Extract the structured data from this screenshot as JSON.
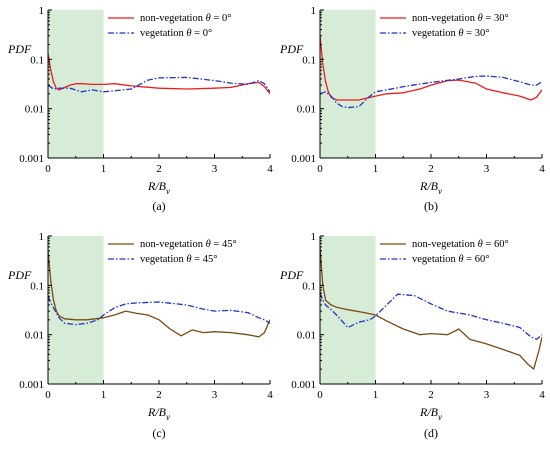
{
  "colors": {
    "shade": "#d6ecd6",
    "red": "#ee1c1c",
    "blue": "#2233cc",
    "brown": "#7a4a10",
    "axis": "#000000"
  },
  "panels_layout_note": "four panels in a 2x2 grid",
  "chart_data": [
    {
      "type": "line",
      "caption": "(a)",
      "xlabel": "R/B",
      "xlabel_sub": "v",
      "ylabel": "PDF",
      "xlim": [
        0,
        4
      ],
      "ylim": [
        0.001,
        1
      ],
      "yscale": "log",
      "xticks": [
        "0",
        "1",
        "2",
        "3",
        "4"
      ],
      "yticks": [
        "0.001",
        "0.01",
        "0.1",
        "1"
      ],
      "shaded_x": [
        0,
        1
      ],
      "legend_position": "top-center",
      "series": [
        {
          "name": "non-vegetation θ = 0°",
          "legend_pre": "non-vegetation ",
          "legend_theta": "θ",
          "legend_post": " = 0°",
          "color": "#ee1c1c",
          "dash": "solid",
          "x": [
            0,
            0.05,
            0.1,
            0.15,
            0.2,
            0.3,
            0.4,
            0.5,
            0.6,
            0.8,
            1.0,
            1.2,
            1.5,
            2.0,
            2.5,
            3.0,
            3.3,
            3.6,
            3.8,
            3.9,
            4.0
          ],
          "y": [
            0.13,
            0.06,
            0.035,
            0.026,
            0.024,
            0.027,
            0.03,
            0.032,
            0.032,
            0.031,
            0.031,
            0.032,
            0.029,
            0.026,
            0.025,
            0.026,
            0.027,
            0.032,
            0.034,
            0.028,
            0.02
          ]
        },
        {
          "name": "vegetation θ = 0°",
          "legend_pre": "vegetation ",
          "legend_theta": "θ",
          "legend_post": " = 0°",
          "color": "#2233cc",
          "dash": "dashdot",
          "x": [
            0,
            0.1,
            0.2,
            0.4,
            0.6,
            0.8,
            1.0,
            1.2,
            1.5,
            1.8,
            2.0,
            2.5,
            3.0,
            3.3,
            3.6,
            3.8,
            3.9,
            4.0
          ],
          "y": [
            0.03,
            0.025,
            0.026,
            0.026,
            0.022,
            0.024,
            0.022,
            0.023,
            0.025,
            0.038,
            0.042,
            0.043,
            0.037,
            0.033,
            0.031,
            0.037,
            0.032,
            0.022
          ]
        }
      ]
    },
    {
      "type": "line",
      "caption": "(b)",
      "xlabel": "R/B",
      "xlabel_sub": "v",
      "ylabel": "PDF",
      "xlim": [
        0,
        4
      ],
      "ylim": [
        0.001,
        1
      ],
      "yscale": "log",
      "xticks": [
        "0",
        "1",
        "2",
        "3",
        "4"
      ],
      "yticks": [
        "0.001",
        "0.01",
        "0.1",
        "1"
      ],
      "shaded_x": [
        0,
        1
      ],
      "legend_position": "top-center",
      "series": [
        {
          "name": "non-vegetation θ = 30°",
          "legend_pre": "non-vegetation ",
          "legend_theta": "θ",
          "legend_post": " = 30°",
          "color": "#ee1c1c",
          "dash": "solid",
          "x": [
            0,
            0.05,
            0.1,
            0.15,
            0.2,
            0.3,
            0.5,
            0.7,
            0.8,
            1.0,
            1.2,
            1.5,
            1.8,
            2.0,
            2.3,
            2.5,
            2.8,
            3.0,
            3.3,
            3.6,
            3.8,
            3.9,
            4.0
          ],
          "y": [
            0.3,
            0.08,
            0.035,
            0.022,
            0.017,
            0.015,
            0.015,
            0.015,
            0.016,
            0.018,
            0.02,
            0.021,
            0.025,
            0.03,
            0.037,
            0.038,
            0.033,
            0.025,
            0.021,
            0.018,
            0.015,
            0.017,
            0.024
          ]
        },
        {
          "name": "vegetation θ = 30°",
          "legend_pre": "vegetation ",
          "legend_theta": "θ",
          "legend_post": " = 30°",
          "color": "#2233cc",
          "dash": "dashdot",
          "x": [
            0,
            0.1,
            0.2,
            0.3,
            0.4,
            0.5,
            0.7,
            0.9,
            1.0,
            1.2,
            1.5,
            2.0,
            2.5,
            2.8,
            3.0,
            3.3,
            3.6,
            3.8,
            3.9,
            4.0
          ],
          "y": [
            0.02,
            0.022,
            0.018,
            0.013,
            0.011,
            0.0105,
            0.011,
            0.018,
            0.022,
            0.024,
            0.028,
            0.034,
            0.04,
            0.045,
            0.046,
            0.043,
            0.035,
            0.03,
            0.03,
            0.035
          ]
        }
      ]
    },
    {
      "type": "line",
      "caption": "(c)",
      "xlabel": "R/B",
      "xlabel_sub": "v",
      "ylabel": "PDF",
      "xlim": [
        0,
        4
      ],
      "ylim": [
        0.001,
        1
      ],
      "yscale": "log",
      "xticks": [
        "0",
        "1",
        "2",
        "3",
        "4"
      ],
      "yticks": [
        "0.001",
        "0.01",
        "0.1",
        "1"
      ],
      "shaded_x": [
        0,
        1
      ],
      "legend_position": "top-center",
      "series": [
        {
          "name": "non-vegetation θ = 45°",
          "legend_pre": "non-vegetation ",
          "legend_theta": "θ",
          "legend_post": " = 45°",
          "color": "#7a4a10",
          "dash": "solid",
          "x": [
            0,
            0.05,
            0.1,
            0.15,
            0.2,
            0.3,
            0.5,
            0.7,
            1.0,
            1.2,
            1.4,
            1.6,
            1.8,
            2.0,
            2.2,
            2.4,
            2.6,
            2.8,
            3.0,
            3.3,
            3.6,
            3.8,
            3.9,
            4.0
          ],
          "y": [
            0.5,
            0.12,
            0.05,
            0.03,
            0.024,
            0.021,
            0.02,
            0.02,
            0.022,
            0.025,
            0.03,
            0.027,
            0.025,
            0.02,
            0.013,
            0.0095,
            0.0125,
            0.011,
            0.0115,
            0.011,
            0.01,
            0.009,
            0.011,
            0.02
          ]
        },
        {
          "name": "vegetation θ = 45°",
          "legend_pre": "vegetation ",
          "legend_theta": "θ",
          "legend_post": " = 45°",
          "color": "#2233cc",
          "dash": "dashdot",
          "x": [
            0,
            0.05,
            0.1,
            0.2,
            0.3,
            0.5,
            0.7,
            0.9,
            1.0,
            1.2,
            1.4,
            1.6,
            2.0,
            2.5,
            2.8,
            3.0,
            3.3,
            3.6,
            3.8,
            3.9,
            4.0
          ],
          "y": [
            0.06,
            0.045,
            0.035,
            0.022,
            0.017,
            0.016,
            0.017,
            0.02,
            0.025,
            0.035,
            0.042,
            0.044,
            0.046,
            0.04,
            0.033,
            0.03,
            0.031,
            0.028,
            0.022,
            0.02,
            0.017
          ]
        }
      ]
    },
    {
      "type": "line",
      "caption": "(d)",
      "xlabel": "R/B",
      "xlabel_sub": "v",
      "ylabel": "PDF",
      "xlim": [
        0,
        4
      ],
      "ylim": [
        0.001,
        1
      ],
      "yscale": "log",
      "xticks": [
        "0",
        "1",
        "2",
        "3",
        "4"
      ],
      "yticks": [
        "0.001",
        "0.01",
        "0.1",
        "1"
      ],
      "shaded_x": [
        0,
        1
      ],
      "legend_position": "top-center",
      "series": [
        {
          "name": "non-vegetation θ = 60°",
          "legend_pre": "non-vegetation ",
          "legend_theta": "θ",
          "legend_post": " = 60°",
          "color": "#7a4a10",
          "dash": "solid",
          "x": [
            0,
            0.05,
            0.1,
            0.2,
            0.3,
            0.5,
            0.8,
            1.0,
            1.2,
            1.5,
            1.8,
            2.0,
            2.3,
            2.5,
            2.7,
            3.0,
            3.3,
            3.6,
            3.75,
            3.85,
            3.95,
            4.0
          ],
          "y": [
            0.6,
            0.1,
            0.05,
            0.04,
            0.036,
            0.032,
            0.028,
            0.025,
            0.019,
            0.013,
            0.01,
            0.0105,
            0.01,
            0.013,
            0.008,
            0.0065,
            0.005,
            0.0038,
            0.0025,
            0.002,
            0.005,
            0.009
          ]
        },
        {
          "name": "vegetation θ = 60°",
          "legend_pre": "vegetation ",
          "legend_theta": "θ",
          "legend_post": " = 60°",
          "color": "#2233cc",
          "dash": "dashdot",
          "x": [
            0,
            0.05,
            0.1,
            0.2,
            0.3,
            0.5,
            0.7,
            0.9,
            1.0,
            1.2,
            1.4,
            1.7,
            2.0,
            2.3,
            2.7,
            3.0,
            3.3,
            3.6,
            3.8,
            3.9,
            4.0
          ],
          "y": [
            0.07,
            0.05,
            0.04,
            0.032,
            0.025,
            0.014,
            0.018,
            0.02,
            0.024,
            0.04,
            0.066,
            0.062,
            0.042,
            0.03,
            0.025,
            0.02,
            0.017,
            0.014,
            0.009,
            0.008,
            0.01
          ]
        }
      ]
    }
  ]
}
